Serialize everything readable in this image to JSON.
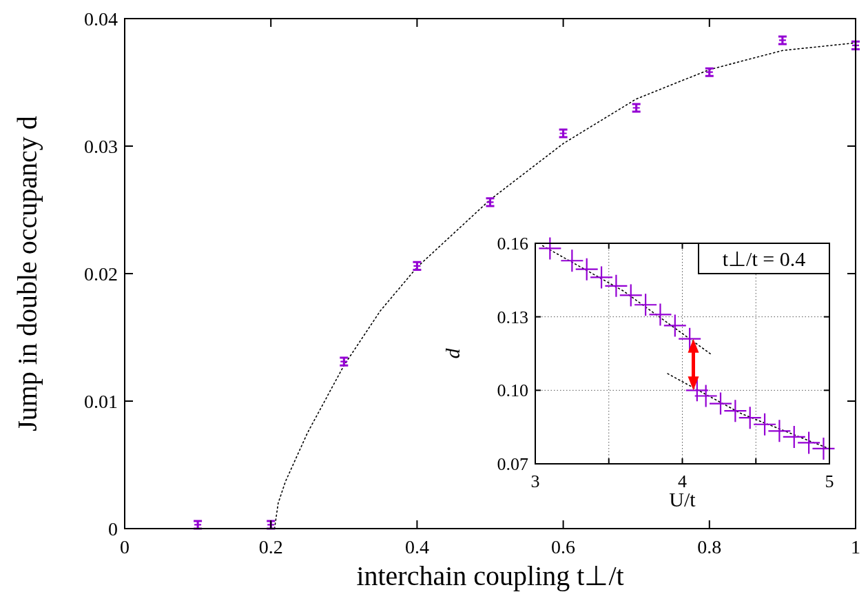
{
  "chart_data": [
    {
      "type": "scatter",
      "xlabel": "interchain coupling t⊥/t",
      "ylabel": "Jump in double occupancy d",
      "xlim": [
        0,
        1
      ],
      "ylim": [
        0,
        0.04
      ],
      "xticks": [
        0,
        0.2,
        0.4,
        0.6,
        0.8,
        1
      ],
      "yticks": [
        0,
        0.01,
        0.02,
        0.03,
        0.04
      ],
      "grid": false,
      "series": [
        {
          "color": "#9400d3",
          "marker": "cross",
          "x": [
            0.1,
            0.2,
            0.3,
            0.4,
            0.5,
            0.6,
            0.7,
            0.8,
            0.9,
            1.0
          ],
          "values": [
            0.0003,
            0.0003,
            0.0131,
            0.0206,
            0.0256,
            0.031,
            0.033,
            0.0358,
            0.0383,
            0.0379
          ],
          "errors": [
            0.0003,
            0.0003,
            0.0003,
            0.0003,
            0.0003,
            0.0003,
            0.0003,
            0.0003,
            0.0003,
            0.0003
          ]
        },
        {
          "type": "line",
          "color": "#000000",
          "line_style": "dotted",
          "x": [
            0.205,
            0.21,
            0.22,
            0.25,
            0.3,
            0.35,
            0.4,
            0.5,
            0.6,
            0.7,
            0.8,
            0.9,
            1.0
          ],
          "values": [
            0,
            0.002,
            0.0037,
            0.0075,
            0.0128,
            0.0171,
            0.0205,
            0.0258,
            0.0302,
            0.0337,
            0.036,
            0.0375,
            0.0381
          ]
        }
      ]
    },
    {
      "type": "scatter",
      "xlabel": "U/t",
      "ylabel": "d",
      "annotations": [
        "t⊥/t = 0.4"
      ],
      "xlim": [
        3,
        5
      ],
      "ylim": [
        0.07,
        0.16
      ],
      "xticks": [
        3,
        {
          "value": 3.5,
          "label": null
        },
        4,
        {
          "value": 4.5,
          "label": null
        },
        5
      ],
      "yticks": [
        0.07,
        {
          "value": 0.1,
          "label": "0.10"
        },
        0.13,
        0.16
      ],
      "grid": true,
      "series": [
        {
          "color": "#9400d3",
          "marker": "cross",
          "x": [
            3.1,
            3.25,
            3.35,
            3.45,
            3.55,
            3.65,
            3.75,
            3.85,
            3.95,
            4.05
          ],
          "values": [
            0.1579,
            0.1529,
            0.1494,
            0.1461,
            0.1426,
            0.1388,
            0.1349,
            0.1309,
            0.1264,
            0.121
          ]
        },
        {
          "color": "#9400d3",
          "marker": "cross",
          "x": [
            4.1,
            4.16,
            4.26,
            4.36,
            4.46,
            4.56,
            4.66,
            4.76,
            4.86,
            4.96
          ],
          "values": [
            0.1,
            0.0977,
            0.0946,
            0.0916,
            0.0888,
            0.0861,
            0.0834,
            0.081,
            0.0786,
            0.0762
          ]
        },
        {
          "type": "line",
          "color": "#000000",
          "line_style": "dotted",
          "x": [
            3.05,
            3.6,
            4.2
          ],
          "values": [
            0.159,
            0.1405,
            0.1145
          ]
        },
        {
          "type": "line",
          "color": "#000000",
          "line_style": "dotted",
          "x": [
            3.9,
            4.4,
            5.0
          ],
          "values": [
            0.1068,
            0.0905,
            0.0761
          ]
        }
      ]
    }
  ]
}
